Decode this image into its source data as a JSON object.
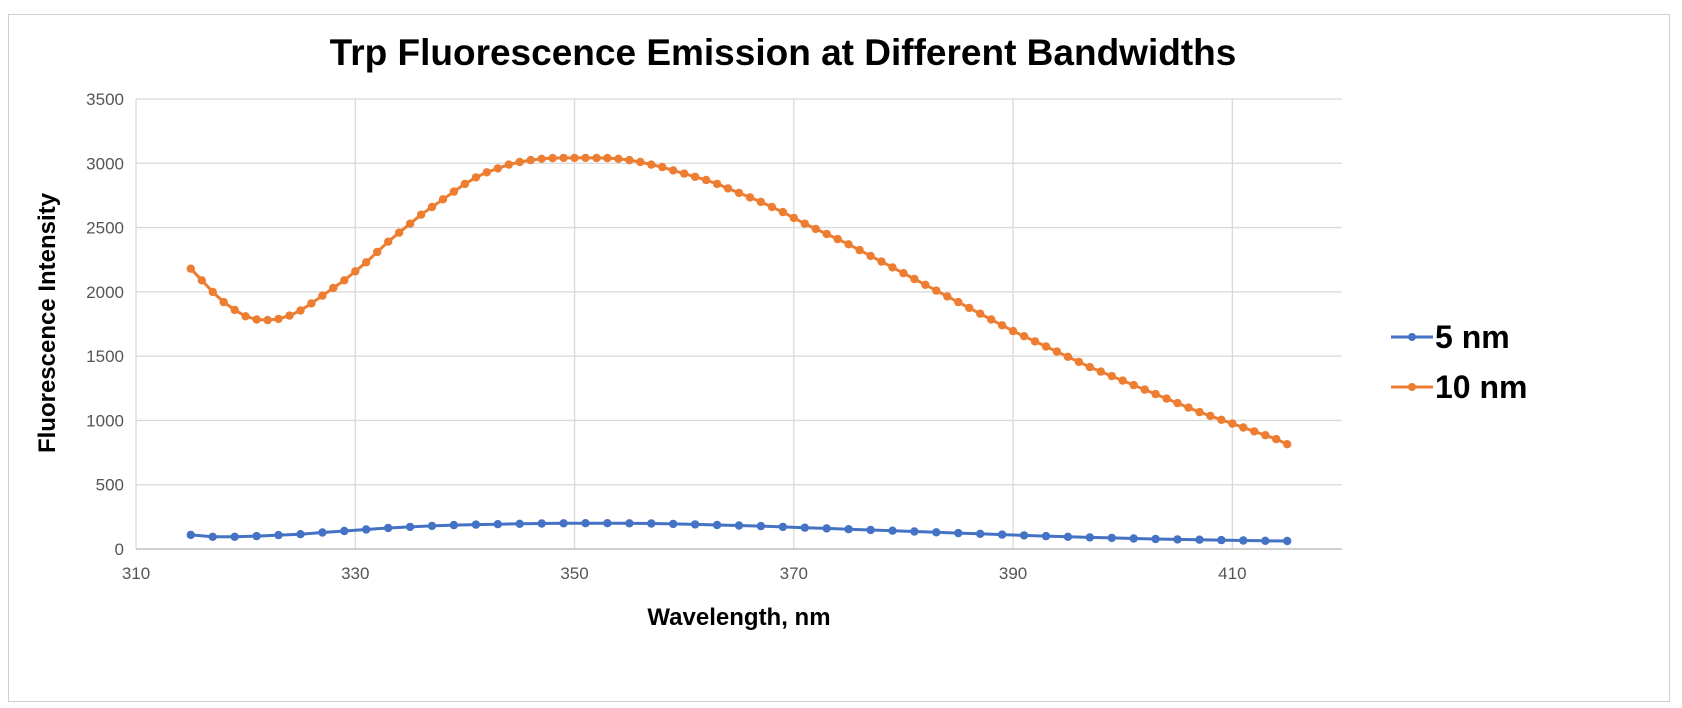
{
  "chart_data": {
    "type": "line",
    "title": "Trp Fluorescence Emission at Different Bandwidths",
    "xlabel": "Wavelength, nm",
    "ylabel": "Fluorescence Intensity",
    "xlim": [
      310,
      420
    ],
    "ylim": [
      0,
      3500
    ],
    "xticks": [
      310,
      330,
      350,
      370,
      390,
      410
    ],
    "yticks": [
      0,
      500,
      1000,
      1500,
      2000,
      2500,
      3000,
      3500
    ],
    "grid": true,
    "legend_position": "right",
    "series": [
      {
        "name": "5 nm",
        "color": "#4472C4",
        "x": [
          315,
          317,
          319,
          321,
          323,
          325,
          327,
          329,
          331,
          333,
          335,
          337,
          339,
          341,
          343,
          345,
          347,
          349,
          351,
          353,
          355,
          357,
          359,
          361,
          363,
          365,
          367,
          369,
          371,
          373,
          375,
          377,
          379,
          381,
          383,
          385,
          387,
          389,
          391,
          393,
          395,
          397,
          399,
          401,
          403,
          405,
          407,
          409,
          411,
          413,
          415
        ],
        "values": [
          110,
          95,
          95,
          100,
          108,
          115,
          128,
          140,
          152,
          163,
          172,
          180,
          186,
          190,
          193,
          196,
          198,
          200,
          201,
          201,
          200,
          198,
          195,
          191,
          187,
          183,
          178,
          172,
          166,
          160,
          154,
          148,
          142,
          136,
          130,
          124,
          118,
          112,
          106,
          100,
          95,
          90,
          86,
          82,
          78,
          75,
          72,
          69,
          66,
          64,
          62
        ]
      },
      {
        "name": "10 nm",
        "color": "#ED7D31",
        "x": [
          315,
          316,
          317,
          318,
          319,
          320,
          321,
          322,
          323,
          324,
          325,
          326,
          327,
          328,
          329,
          330,
          331,
          332,
          333,
          334,
          335,
          336,
          337,
          338,
          339,
          340,
          341,
          342,
          343,
          344,
          345,
          346,
          347,
          348,
          349,
          350,
          351,
          352,
          353,
          354,
          355,
          356,
          357,
          358,
          359,
          360,
          361,
          362,
          363,
          364,
          365,
          366,
          367,
          368,
          369,
          370,
          371,
          372,
          373,
          374,
          375,
          376,
          377,
          378,
          379,
          380,
          381,
          382,
          383,
          384,
          385,
          386,
          387,
          388,
          389,
          390,
          391,
          392,
          393,
          394,
          395,
          396,
          397,
          398,
          399,
          400,
          401,
          402,
          403,
          404,
          405,
          406,
          407,
          408,
          409,
          410,
          411,
          412,
          413,
          414,
          415
        ],
        "values": [
          2180,
          2090,
          2000,
          1920,
          1860,
          1810,
          1785,
          1780,
          1790,
          1815,
          1855,
          1910,
          1970,
          2030,
          2090,
          2160,
          2230,
          2310,
          2390,
          2460,
          2530,
          2600,
          2660,
          2720,
          2780,
          2840,
          2890,
          2930,
          2960,
          2990,
          3010,
          3025,
          3035,
          3040,
          3042,
          3042,
          3042,
          3041,
          3040,
          3035,
          3025,
          3010,
          2990,
          2970,
          2945,
          2920,
          2895,
          2870,
          2840,
          2805,
          2770,
          2735,
          2700,
          2660,
          2620,
          2575,
          2530,
          2490,
          2450,
          2410,
          2370,
          2325,
          2280,
          2235,
          2190,
          2145,
          2100,
          2055,
          2010,
          1965,
          1920,
          1875,
          1830,
          1785,
          1740,
          1695,
          1655,
          1615,
          1575,
          1535,
          1495,
          1455,
          1415,
          1380,
          1345,
          1310,
          1275,
          1240,
          1205,
          1170,
          1135,
          1100,
          1065,
          1035,
          1005,
          975,
          945,
          915,
          885,
          855,
          815
        ]
      }
    ]
  }
}
